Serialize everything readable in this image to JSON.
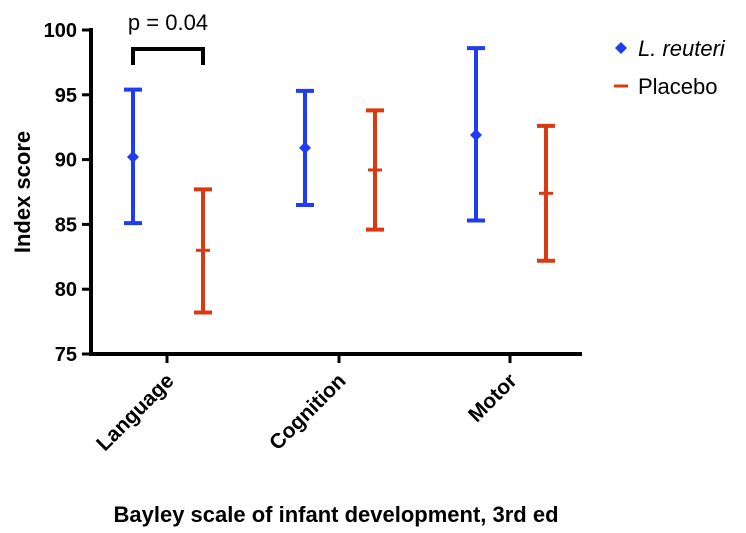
{
  "chart_data": {
    "type": "errorbar",
    "categories": [
      "Language",
      "Cognition",
      "Motor"
    ],
    "xlabel": "Bayley scale of infant development, 3rd ed",
    "ylabel": "Index score",
    "ylim": [
      75,
      100
    ],
    "yticks": [
      75,
      80,
      85,
      90,
      95,
      100
    ],
    "series": [
      {
        "name": "L. reuteri",
        "color": "#1f3cf0",
        "marker": "diamond",
        "mean": [
          90.2,
          90.9,
          91.9
        ],
        "lower": [
          85.1,
          86.5,
          85.3
        ],
        "upper": [
          95.4,
          95.3,
          98.6
        ]
      },
      {
        "name": "Placebo",
        "color": "#d93a12",
        "marker": "dash",
        "mean": [
          83.0,
          89.2,
          87.4
        ],
        "lower": [
          78.2,
          84.6,
          82.2
        ],
        "upper": [
          87.7,
          93.8,
          92.6
        ]
      }
    ],
    "annotation": {
      "text": "p = 0.04",
      "category": "Language"
    },
    "legend_position": "top-right"
  }
}
